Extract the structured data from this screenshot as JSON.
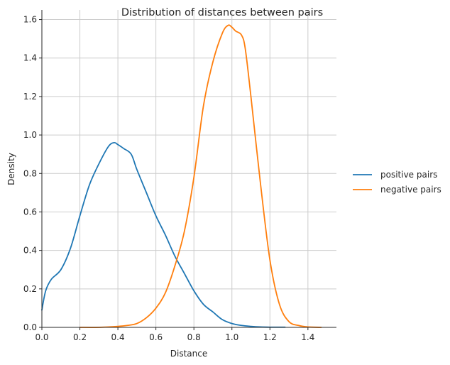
{
  "chart_data": {
    "type": "line",
    "title": "Distribution of distances between pairs",
    "xlabel": "Distance",
    "ylabel": "Density",
    "xlim": [
      0,
      1.55
    ],
    "ylim": [
      0,
      1.65
    ],
    "xticks": [
      "0.0",
      "0.2",
      "0.4",
      "0.6",
      "0.8",
      "1.0",
      "1.2",
      "1.4"
    ],
    "yticks": [
      "0.0",
      "0.2",
      "0.4",
      "0.6",
      "0.8",
      "1.0",
      "1.2",
      "1.4",
      "1.6"
    ],
    "grid": true,
    "legend_position": "right",
    "series": [
      {
        "name": "positive pairs",
        "color": "#1f77b4",
        "x": [
          0.0,
          0.02,
          0.05,
          0.1,
          0.15,
          0.2,
          0.25,
          0.3,
          0.35,
          0.38,
          0.4,
          0.43,
          0.47,
          0.5,
          0.55,
          0.6,
          0.65,
          0.7,
          0.75,
          0.8,
          0.85,
          0.9,
          0.95,
          1.0,
          1.05,
          1.1,
          1.15,
          1.2,
          1.28
        ],
        "y": [
          0.09,
          0.19,
          0.25,
          0.3,
          0.41,
          0.58,
          0.74,
          0.85,
          0.94,
          0.96,
          0.95,
          0.93,
          0.9,
          0.82,
          0.7,
          0.58,
          0.48,
          0.37,
          0.28,
          0.19,
          0.12,
          0.08,
          0.04,
          0.02,
          0.01,
          0.005,
          0.002,
          0.001,
          0.001
        ]
      },
      {
        "name": "negative pairs",
        "color": "#ff7f0e",
        "x": [
          0.2,
          0.3,
          0.4,
          0.45,
          0.5,
          0.55,
          0.6,
          0.65,
          0.7,
          0.75,
          0.8,
          0.85,
          0.9,
          0.95,
          0.98,
          1.0,
          1.02,
          1.05,
          1.07,
          1.1,
          1.15,
          1.2,
          1.25,
          1.3,
          1.35,
          1.4,
          1.47
        ],
        "y": [
          0.0,
          0.0,
          0.005,
          0.01,
          0.02,
          0.05,
          0.1,
          0.18,
          0.32,
          0.5,
          0.78,
          1.15,
          1.38,
          1.53,
          1.57,
          1.56,
          1.54,
          1.52,
          1.45,
          1.2,
          0.75,
          0.35,
          0.12,
          0.03,
          0.01,
          0.002,
          0.0
        ]
      }
    ]
  }
}
